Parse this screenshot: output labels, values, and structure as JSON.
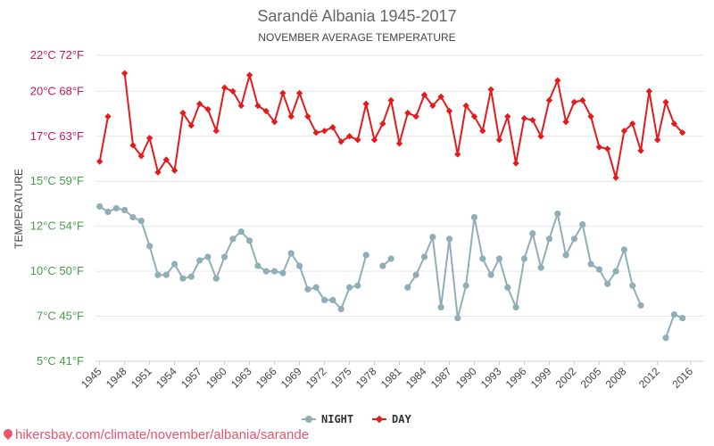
{
  "chart_data": {
    "type": "line",
    "title": "Sarandë Albania 1945-2017",
    "subtitle": "NOVEMBER AVERAGE TEMPERATURE",
    "ylabel": "TEMPERATURE",
    "ylim": [
      5,
      22
    ],
    "yticks": [
      {
        "value": 22,
        "label": "22°C 72°F"
      },
      {
        "value": 20,
        "label": "20°C 68°F"
      },
      {
        "value": 17.5,
        "label": "17°C 63°F"
      },
      {
        "value": 15,
        "label": "15°C 59°F"
      },
      {
        "value": 12.5,
        "label": "12°C 54°F"
      },
      {
        "value": 10,
        "label": "10°C 50°F"
      },
      {
        "value": 7.5,
        "label": "7°C 45°F"
      },
      {
        "value": 5,
        "label": "5°C 41°F"
      }
    ],
    "xlim": [
      1944.5,
      2017.5
    ],
    "xticks": [
      1945,
      1948,
      1951,
      1954,
      1957,
      1960,
      1963,
      1966,
      1969,
      1972,
      1975,
      1978,
      1981,
      1984,
      1987,
      1990,
      1993,
      1996,
      1999,
      2002,
      2005,
      2008,
      2012,
      2016
    ],
    "legend_position": "bottom-center",
    "grid": true,
    "series": [
      {
        "name": "NIGHT",
        "color": "#90aeb6",
        "points": [
          [
            1945,
            13.6
          ],
          [
            1946,
            13.3
          ],
          [
            1947,
            13.5
          ],
          [
            1948,
            13.4
          ],
          [
            1949,
            13.0
          ],
          [
            1950,
            12.8
          ],
          [
            1951,
            11.4
          ],
          [
            1952,
            9.8
          ],
          [
            1953,
            9.8
          ],
          [
            1954,
            10.4
          ],
          [
            1955,
            9.6
          ],
          [
            1956,
            9.7
          ],
          [
            1957,
            10.6
          ],
          [
            1958,
            10.8
          ],
          [
            1959,
            9.6
          ],
          [
            1960,
            10.8
          ],
          [
            1961,
            11.8
          ],
          [
            1962,
            12.2
          ],
          [
            1963,
            11.7
          ],
          [
            1964,
            10.3
          ],
          [
            1965,
            10.0
          ],
          [
            1966,
            10.0
          ],
          [
            1967,
            9.9
          ],
          [
            1968,
            11.0
          ],
          [
            1969,
            10.3
          ],
          [
            1970,
            9.0
          ],
          [
            1971,
            9.1
          ],
          [
            1972,
            8.4
          ],
          [
            1973,
            8.4
          ],
          [
            1974,
            7.9
          ],
          [
            1975,
            9.1
          ],
          [
            1976,
            9.2
          ],
          [
            1977,
            10.9
          ],
          [
            1978,
            null
          ],
          [
            1979,
            10.3
          ],
          [
            1980,
            10.7
          ],
          [
            1981,
            null
          ],
          [
            1982,
            9.1
          ],
          [
            1983,
            9.8
          ],
          [
            1984,
            10.8
          ],
          [
            1985,
            11.9
          ],
          [
            1986,
            8.0
          ],
          [
            1987,
            11.8
          ],
          [
            1988,
            7.4
          ],
          [
            1989,
            9.2
          ],
          [
            1990,
            13.0
          ],
          [
            1991,
            10.7
          ],
          [
            1992,
            9.8
          ],
          [
            1993,
            10.7
          ],
          [
            1994,
            9.1
          ],
          [
            1995,
            8.0
          ],
          [
            1996,
            10.7
          ],
          [
            1997,
            12.1
          ],
          [
            1998,
            10.2
          ],
          [
            1999,
            11.8
          ],
          [
            2000,
            13.2
          ],
          [
            2001,
            10.9
          ],
          [
            2002,
            11.8
          ],
          [
            2003,
            12.6
          ],
          [
            2004,
            10.4
          ],
          [
            2005,
            10.1
          ],
          [
            2006,
            9.3
          ],
          [
            2007,
            10.0
          ],
          [
            2008,
            11.2
          ],
          [
            2009,
            9.2
          ],
          [
            2010,
            8.1
          ],
          [
            2011,
            null
          ],
          [
            2012,
            null
          ],
          [
            2013,
            6.3
          ],
          [
            2014,
            7.6
          ],
          [
            2015,
            7.4
          ]
        ]
      },
      {
        "name": "DAY",
        "color": "#e41a1c",
        "points": [
          [
            1945,
            16.1
          ],
          [
            1946,
            18.6
          ],
          [
            1947,
            null
          ],
          [
            1948,
            21.0
          ],
          [
            1949,
            17.0
          ],
          [
            1950,
            16.4
          ],
          [
            1951,
            17.4
          ],
          [
            1952,
            15.5
          ],
          [
            1953,
            16.2
          ],
          [
            1954,
            15.6
          ],
          [
            1955,
            18.8
          ],
          [
            1956,
            18.1
          ],
          [
            1957,
            19.3
          ],
          [
            1958,
            19.0
          ],
          [
            1959,
            17.8
          ],
          [
            1960,
            20.2
          ],
          [
            1961,
            20.0
          ],
          [
            1962,
            19.2
          ],
          [
            1963,
            20.9
          ],
          [
            1964,
            19.2
          ],
          [
            1965,
            18.9
          ],
          [
            1966,
            18.3
          ],
          [
            1967,
            19.9
          ],
          [
            1968,
            18.6
          ],
          [
            1969,
            19.9
          ],
          [
            1970,
            18.6
          ],
          [
            1971,
            17.7
          ],
          [
            1972,
            17.8
          ],
          [
            1973,
            18.0
          ],
          [
            1974,
            17.2
          ],
          [
            1975,
            17.5
          ],
          [
            1976,
            17.3
          ],
          [
            1977,
            19.3
          ],
          [
            1978,
            17.3
          ],
          [
            1979,
            18.2
          ],
          [
            1980,
            19.5
          ],
          [
            1981,
            17.1
          ],
          [
            1982,
            18.8
          ],
          [
            1983,
            18.6
          ],
          [
            1984,
            19.8
          ],
          [
            1985,
            19.2
          ],
          [
            1986,
            19.7
          ],
          [
            1987,
            18.9
          ],
          [
            1988,
            16.5
          ],
          [
            1989,
            19.2
          ],
          [
            1990,
            18.6
          ],
          [
            1991,
            17.8
          ],
          [
            1992,
            20.1
          ],
          [
            1993,
            17.3
          ],
          [
            1994,
            18.6
          ],
          [
            1995,
            16.0
          ],
          [
            1996,
            18.5
          ],
          [
            1997,
            18.4
          ],
          [
            1998,
            17.5
          ],
          [
            1999,
            19.5
          ],
          [
            2000,
            20.6
          ],
          [
            2001,
            18.3
          ],
          [
            2002,
            19.4
          ],
          [
            2003,
            19.5
          ],
          [
            2004,
            18.6
          ],
          [
            2005,
            16.9
          ],
          [
            2006,
            16.8
          ],
          [
            2007,
            15.2
          ],
          [
            2008,
            17.8
          ],
          [
            2009,
            18.2
          ],
          [
            2010,
            16.7
          ],
          [
            2011,
            20.0
          ],
          [
            2012,
            17.3
          ],
          [
            2013,
            19.4
          ],
          [
            2014,
            18.2
          ],
          [
            2015,
            17.7
          ]
        ]
      }
    ]
  },
  "colors": {
    "ytick_warm": "#c2185b",
    "ytick_cool": "#43a047",
    "grid": "#e6e6e6"
  },
  "footer": {
    "icon": "map-pin-icon",
    "text": "hikersbay.com/climate/november/albania/sarande"
  }
}
